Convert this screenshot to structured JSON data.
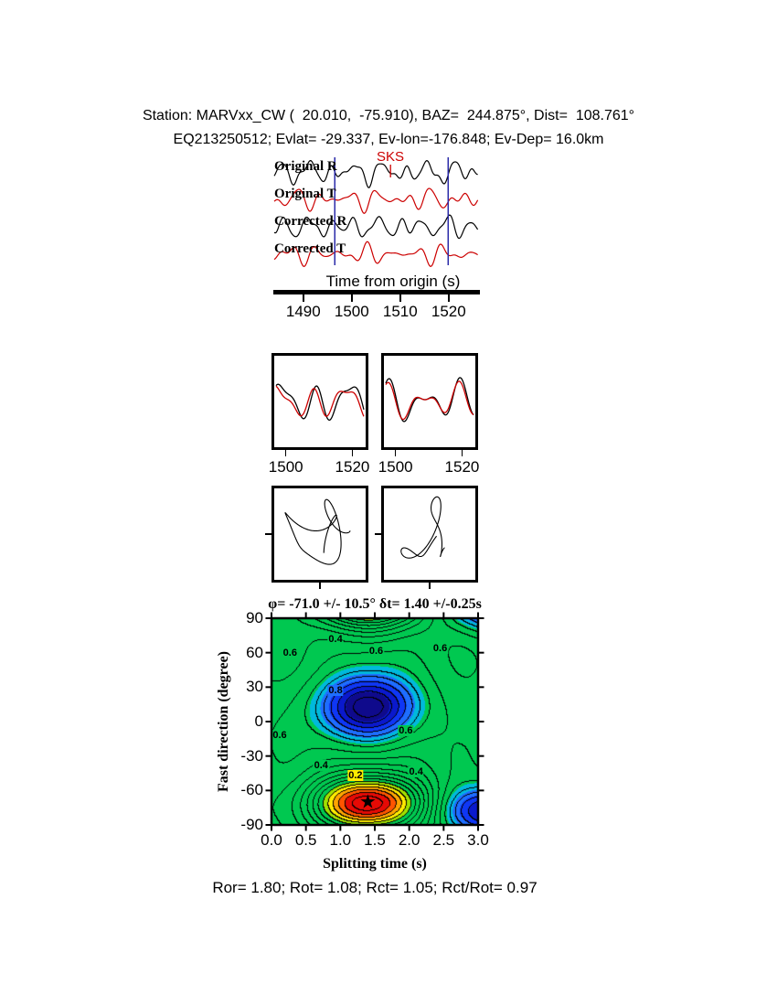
{
  "header": {
    "line1": "Station: MARVxx_CW (  20.010,  -75.910), BAZ=  244.875°, Dist=  108.761°",
    "line2": "EQ213250512; Evlat= -29.337, Ev-lon=-176.848; Ev-Dep= 16.0km"
  },
  "waveform_panel": {
    "phase_label": "SKS",
    "trace_labels": [
      "Original R",
      "Original T",
      "Corrected R",
      "Corrected T"
    ],
    "axis_label": "Time from origin (s)"
  },
  "contour_panel": {
    "title": "φ= -71.0 +/- 10.5° δt= 1.40 +/-0.25s",
    "xlabel": "Splitting time (s)",
    "ylabel": "Fast direction (degree)"
  },
  "footer": {
    "text": "Ror= 1.80; Rot= 1.08; Rct= 1.05; Rct/Rot= 0.97"
  },
  "colors": {
    "trace_r": "#000000",
    "trace_t": "#cc0000",
    "window_marker": "#2a2aa8",
    "phase_marker": "#cc0000",
    "frame": "#000000",
    "background": "#ffffff"
  },
  "chart_data": {
    "type": "composite",
    "panels": {
      "seismograms": {
        "type": "line",
        "x_range": [
          1484,
          1526
        ],
        "x_ticks": [
          1490,
          1500,
          1510,
          1520
        ],
        "xlabel": "Time from origin (s)",
        "window": [
          1496.5,
          1519.9
        ],
        "phase": {
          "name": "SKS",
          "time": 1508
        },
        "traces": [
          {
            "name": "Original R",
            "color": "#000000",
            "components": [
              [
                7,
                0.2,
                0.3
              ],
              [
                5,
                0.13,
                2.1
              ],
              [
                3.5,
                0.31,
                4.0
              ],
              [
                2,
                0.45,
                1.0
              ]
            ]
          },
          {
            "name": "Original T",
            "color": "#cc0000",
            "components": [
              [
                6,
                0.18,
                1.9
              ],
              [
                4.5,
                0.26,
                0.4
              ],
              [
                3,
                0.11,
                3.2
              ],
              [
                2,
                0.36,
                5.1
              ]
            ]
          },
          {
            "name": "Corrected R",
            "color": "#000000",
            "components": [
              [
                7,
                0.21,
                0.8
              ],
              [
                4.5,
                0.14,
                2.9
              ],
              [
                3,
                0.29,
                1.7
              ],
              [
                2,
                0.4,
                0.2
              ]
            ]
          },
          {
            "name": "Corrected T",
            "color": "#cc0000",
            "components": [
              [
                5.5,
                0.19,
                4.2
              ],
              [
                4,
                0.27,
                2.2
              ],
              [
                2.5,
                0.12,
                5.6
              ],
              [
                2,
                0.34,
                0.9
              ]
            ]
          }
        ]
      },
      "window_pairs": {
        "type": "line",
        "t_range": [
          1496.5,
          1524
        ],
        "x_ticks": [
          1500,
          1520
        ],
        "boxes": [
          {
            "black": [
              [
                15,
                2.6,
                0.4
              ],
              [
                8,
                4.1,
                2.2
              ],
              [
                6,
                1.3,
                1.0
              ]
            ],
            "red": [
              [
                12,
                2.6,
                1.0
              ],
              [
                7,
                4.1,
                2.9
              ],
              [
                5,
                1.3,
                1.6
              ]
            ]
          },
          {
            "black": [
              [
                14,
                2.4,
                1.2
              ],
              [
                8,
                3.8,
                0.3
              ],
              [
                5,
                1.2,
                2.0
              ]
            ],
            "red": [
              [
                12,
                2.4,
                1.4
              ],
              [
                7,
                3.8,
                0.5
              ],
              [
                4,
                1.2,
                2.2
              ]
            ]
          }
        ]
      },
      "particle_motion": {
        "type": "scatter",
        "boxes": [
          {
            "x": [
              [
                26,
                1.0,
                0.8
              ],
              [
                13,
                2.2,
                2.5
              ],
              [
                7,
                3.6,
                1.1
              ]
            ],
            "y": [
              [
                24,
                1.6,
                0.3
              ],
              [
                13,
                2.8,
                4.0
              ],
              [
                8,
                4.3,
                2.2
              ]
            ]
          },
          {
            "x": [
              [
                18,
                1.0,
                0.2
              ],
              [
                12,
                1.9,
                1.6
              ],
              [
                6,
                3.3,
                3.0
              ]
            ],
            "y": [
              [
                30,
                1.3,
                4.5
              ],
              [
                11,
                2.6,
                0.9
              ],
              [
                6,
                3.9,
                1.9
              ]
            ]
          }
        ]
      },
      "error_surface": {
        "type": "heatmap",
        "x_range": [
          0,
          3
        ],
        "y_range": [
          -90,
          90
        ],
        "x_ticks": [
          "0.0",
          "0.5",
          "1.0",
          "1.5",
          "2.0",
          "2.5",
          "3.0"
        ],
        "y_ticks": [
          90,
          60,
          30,
          0,
          -30,
          -60,
          -90
        ],
        "xlabel": "Splitting time (s)",
        "ylabel": "Fast direction (degree)",
        "best_fit": {
          "phi_deg": -71.0,
          "phi_err_deg": 10.5,
          "dt_s": 1.4,
          "dt_err_s": 0.25
        },
        "surface": {
          "base": 0.62,
          "contour_interval": 0.05,
          "gaussians": [
            {
              "x": 1.4,
              "y": -71,
              "a": -0.63,
              "sx": 0.55,
              "sy": 17
            },
            {
              "x": 1.4,
              "y": 12,
              "a": 0.42,
              "sx": 0.5,
              "sy": 20
            },
            {
              "x": 3.2,
              "y": -78,
              "a": 0.36,
              "sx": 0.5,
              "sy": 15
            }
          ],
          "ripples": [
            [
              0.022,
              2.6,
              0.8,
              0.035,
              1.2
            ],
            [
              0.016,
              4.9,
              3.9,
              0.02,
              4.4
            ],
            [
              0.012,
              1.4,
              2.2,
              0.055,
              0.4
            ]
          ]
        },
        "bands": [
          {
            "max": 0.1,
            "rgb": [
              230,
              10,
              5
            ]
          },
          {
            "max": 0.15,
            "rgb": [
              255,
              85,
              0
            ]
          },
          {
            "max": 0.2,
            "rgb": [
              255,
              165,
              0
            ]
          },
          {
            "max": 0.25,
            "rgb": [
              255,
              235,
              0
            ]
          },
          {
            "max": 0.3,
            "rgb": [
              160,
              225,
              0
            ]
          },
          {
            "max": 0.72,
            "rgb": [
              0,
              200,
              80
            ]
          },
          {
            "max": 0.78,
            "rgb": [
              0,
              185,
              220
            ]
          },
          {
            "max": 0.84,
            "rgb": [
              30,
              110,
              255
            ]
          },
          {
            "max": 0.9,
            "rgb": [
              15,
              55,
              245
            ]
          },
          {
            "max": 0.96,
            "rgb": [
              10,
              25,
              205
            ]
          },
          {
            "max": 99,
            "rgb": [
              15,
              10,
              140
            ]
          }
        ],
        "contour_labels": [
          {
            "x": 0.93,
            "y": 72,
            "text": "0.4",
            "bg": "#00c850"
          },
          {
            "x": 1.52,
            "y": 61,
            "text": "0.6",
            "bg": "#00c850"
          },
          {
            "x": 0.27,
            "y": 60,
            "text": "0.6",
            "bg": "#00c850"
          },
          {
            "x": 2.45,
            "y": 64,
            "text": "0.6",
            "bg": "#00c850"
          },
          {
            "x": 0.93,
            "y": 27,
            "text": "0.8",
            "bg": "#1e6eff"
          },
          {
            "x": 1.95,
            "y": -8,
            "text": "0.6",
            "bg": "#00c850"
          },
          {
            "x": 0.12,
            "y": -12,
            "text": "0.6",
            "bg": "#00c850"
          },
          {
            "x": 0.72,
            "y": -38,
            "text": "0.4",
            "bg": "#00c850"
          },
          {
            "x": 1.22,
            "y": -47,
            "text": "0.2",
            "bg": "#ffeb00"
          },
          {
            "x": 2.1,
            "y": -44,
            "text": "0.4",
            "bg": "#00c850"
          }
        ],
        "star": {
          "x": 1.4,
          "y": -71,
          "symbol": "★"
        }
      }
    }
  }
}
